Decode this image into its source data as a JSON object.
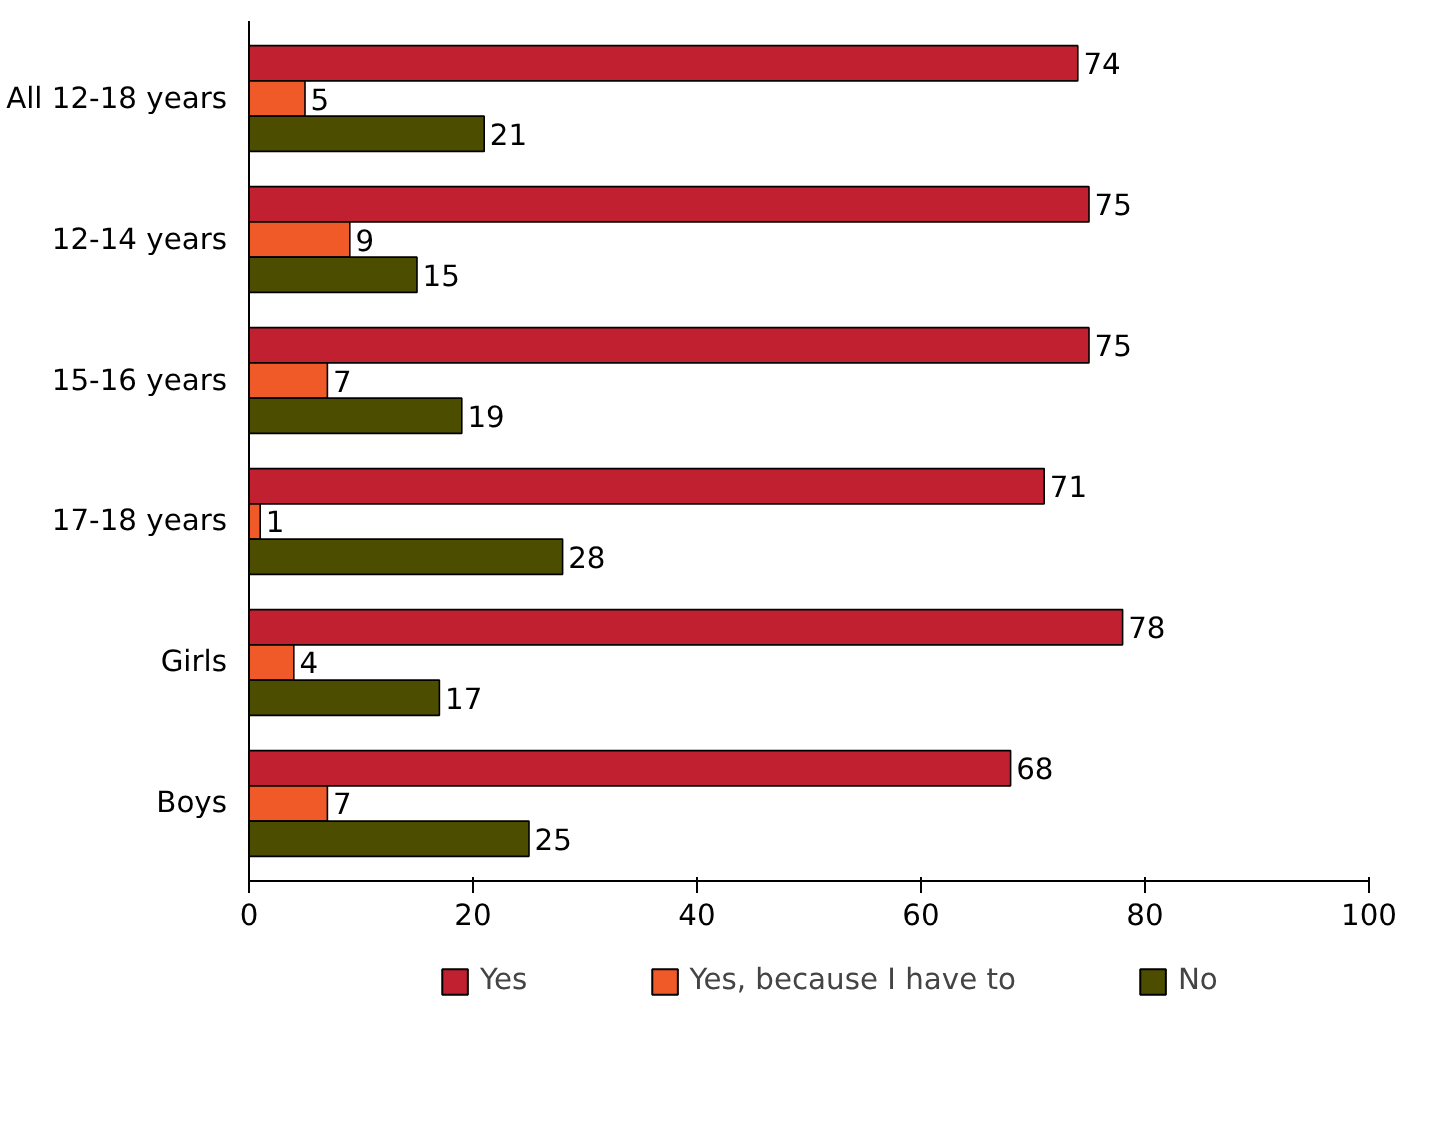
{
  "chart_data": {
    "type": "bar",
    "orientation": "horizontal",
    "categories": [
      "All 12-18 years",
      "12-14 years",
      "15-16 years",
      "17-18 years",
      "Girls",
      "Boys"
    ],
    "series": [
      {
        "name": "Yes",
        "color": "#c0202f",
        "values": [
          74,
          75,
          75,
          71,
          78,
          68
        ]
      },
      {
        "name": "Yes, because I have to",
        "color": "#f05a28",
        "values": [
          5,
          9,
          7,
          1,
          4,
          7
        ]
      },
      {
        "name": "No",
        "color": "#4d4d00",
        "values": [
          21,
          15,
          19,
          28,
          17,
          25
        ]
      }
    ],
    "xlim": [
      0,
      100
    ],
    "xticks": [
      0,
      20,
      40,
      60,
      80,
      100
    ],
    "data_labels": true,
    "grid": false,
    "legend": "bottom"
  }
}
